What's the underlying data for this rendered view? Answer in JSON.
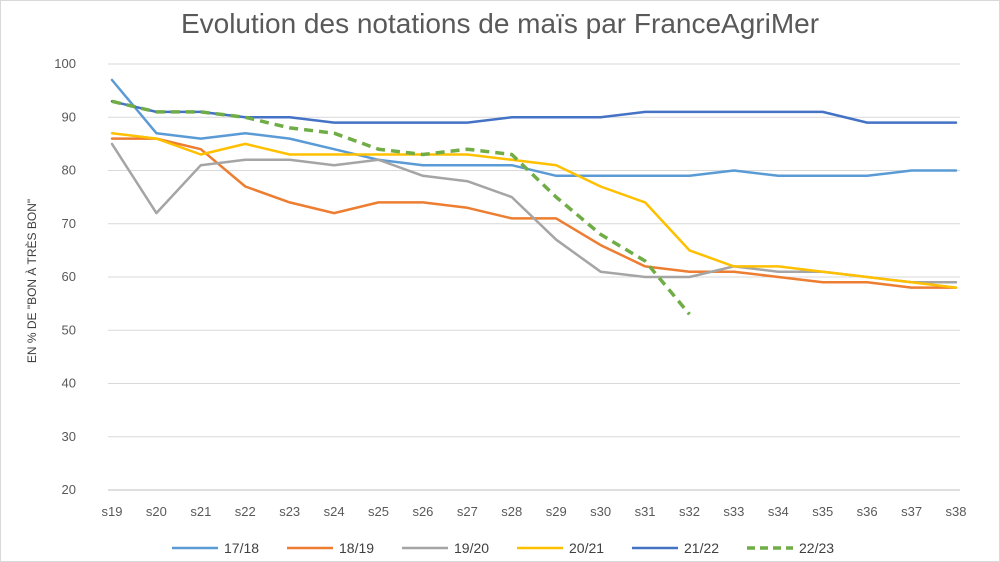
{
  "chart_data": {
    "type": "line",
    "title": "Evolution des notations de maïs par FranceAgriMer",
    "xlabel": "",
    "ylabel": "EN % DE \"BON À TRÈS BON\"",
    "ylim": [
      20,
      100
    ],
    "yticks": [
      20,
      30,
      40,
      50,
      60,
      70,
      80,
      90,
      100
    ],
    "grid": true,
    "legend": "bottom",
    "categories": [
      "s19",
      "s20",
      "s21",
      "s22",
      "s23",
      "s24",
      "s25",
      "s26",
      "s27",
      "s28",
      "s29",
      "s30",
      "s31",
      "s32",
      "s33",
      "s34",
      "s35",
      "s36",
      "s37",
      "s38"
    ],
    "series": [
      {
        "name": "17/18",
        "color": "#5B9BD5",
        "dashed": false,
        "values": [
          97,
          87,
          86,
          87,
          86,
          84,
          82,
          81,
          81,
          81,
          79,
          79,
          79,
          79,
          80,
          79,
          79,
          79,
          80,
          80
        ]
      },
      {
        "name": "18/19",
        "color": "#ED7D31",
        "dashed": false,
        "values": [
          86,
          86,
          84,
          77,
          74,
          72,
          74,
          74,
          73,
          71,
          71,
          66,
          62,
          61,
          61,
          60,
          59,
          59,
          58,
          58
        ]
      },
      {
        "name": "19/20",
        "color": "#A5A5A5",
        "dashed": false,
        "values": [
          85,
          72,
          81,
          82,
          82,
          81,
          82,
          79,
          78,
          75,
          67,
          61,
          60,
          60,
          62,
          61,
          61,
          60,
          59,
          59
        ]
      },
      {
        "name": "20/21",
        "color": "#FFC000",
        "dashed": false,
        "values": [
          87,
          86,
          83,
          85,
          83,
          83,
          83,
          83,
          83,
          82,
          81,
          77,
          74,
          65,
          62,
          62,
          61,
          60,
          59,
          58
        ]
      },
      {
        "name": "21/22",
        "color": "#4472C4",
        "dashed": false,
        "values": [
          93,
          91,
          91,
          90,
          90,
          89,
          89,
          89,
          89,
          90,
          90,
          90,
          91,
          91,
          91,
          91,
          91,
          89,
          89,
          89
        ]
      },
      {
        "name": "22/23",
        "color": "#70AD47",
        "dashed": true,
        "values": [
          93,
          91,
          91,
          90,
          88,
          87,
          84,
          83,
          84,
          83,
          75,
          68,
          63,
          53,
          null,
          null,
          null,
          null,
          null,
          null
        ]
      }
    ]
  }
}
